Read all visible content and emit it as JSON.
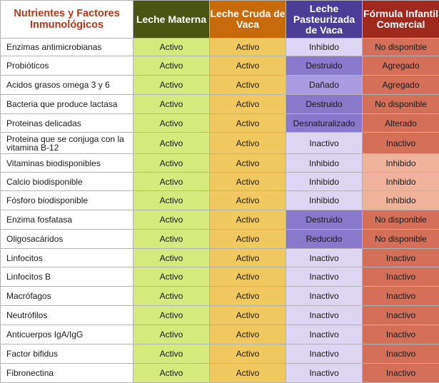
{
  "headers": [
    "Nutrientes y Factores Inmunológicos",
    "Leche Materna",
    "Leche Cruda de Vaca",
    "Leche Pasteurizada de Vaca",
    "Fórmula Infantil Comercial"
  ],
  "status_colors": {
    "Inhibido": "#dcd6f2",
    "Inactivo": "#dcd6f2",
    "Destruido": "#8979cd",
    "Dañado": "#a89be0",
    "Desnaturalizado": "#8979cd",
    "Reducido": "#8979cd",
    "No disponible": "#d4705a",
    "Agregado": "#d4705a",
    "Alterado": "#d4705a",
    "Inactivo_formula": "#d4705a",
    "Inhibido_formula": "#eeb39a"
  },
  "rows": [
    {
      "name": "Enzimas antimicrobianas",
      "c1": "Activo",
      "c2": "Activo",
      "c3": "Inhibido",
      "c4": "No disponible",
      "h": 25
    },
    {
      "name": "Probióticos",
      "c1": "Activo",
      "c2": "Activo",
      "c3": "Destruido",
      "c4": "Agregado",
      "h": 27
    },
    {
      "name": "Acidos grasos omega 3 y 6",
      "c1": "Activo",
      "c2": "Activo",
      "c3": "Dañado",
      "c4": "Agregado",
      "h": 27
    },
    {
      "name": "Bacteria que produce lactasa",
      "c1": "Activo",
      "c2": "Activo",
      "c3": "Destruido",
      "c4": "No disponible",
      "h": 27
    },
    {
      "name": "Proteinas delicadas",
      "c1": "Activo",
      "c2": "Activo",
      "c3": "Desnaturalizado",
      "c4": "Alterado",
      "h": 26
    },
    {
      "name": "Proteina que se conjuga con la vitamina B-12",
      "c1": "Activo",
      "c2": "Activo",
      "c3": "Inactivo",
      "c4": "Inactivo",
      "h": 30
    },
    {
      "name": "Vitaminas biodisponibles",
      "c1": "Activo",
      "c2": "Activo",
      "c3": "Inhibido",
      "c4": "Inhibido",
      "h": 26
    },
    {
      "name": "Calcio biodisponible",
      "c1": "Activo",
      "c2": "Activo",
      "c3": "Inhibido",
      "c4": "Inhibido",
      "h": 26
    },
    {
      "name": "Fósforo biodisponible",
      "c1": "Activo",
      "c2": "Activo",
      "c3": "Inhibido",
      "c4": "Inhibido",
      "h": 27
    },
    {
      "name": "Enzima fosfatasa",
      "c1": "Activo",
      "c2": "Activo",
      "c3": "Destruido",
      "c4": "No disponible",
      "h": 27
    },
    {
      "name": "Oligosacáridos",
      "c1": "Activo",
      "c2": "Activo",
      "c3": "Reducido",
      "c4": "No disponible",
      "h": 27
    },
    {
      "name": "Linfocitos",
      "c1": "Activo",
      "c2": "Activo",
      "c3": "Inactivo",
      "c4": "Inactivo",
      "h": 26
    },
    {
      "name": "Linfocitos B",
      "c1": "Activo",
      "c2": "Activo",
      "c3": "Inactivo",
      "c4": "Inactivo",
      "h": 27
    },
    {
      "name": "Macrófagos",
      "c1": "Activo",
      "c2": "Activo",
      "c3": "Inactivo",
      "c4": "Inactivo",
      "h": 27
    },
    {
      "name": "Neutrófilos",
      "c1": "Activo",
      "c2": "Activo",
      "c3": "Inactivo",
      "c4": "Inactivo",
      "h": 27
    },
    {
      "name": "Anticuerpos IgA/IgG",
      "c1": "Activo",
      "c2": "Activo",
      "c3": "Inactivo",
      "c4": "Inactivo",
      "h": 27
    },
    {
      "name": "Factor bifidus",
      "c1": "Activo",
      "c2": "Activo",
      "c3": "Inactivo",
      "c4": "Inactivo",
      "h": 27
    },
    {
      "name": "Fibronectina",
      "c1": "Activo",
      "c2": "Activo",
      "c3": "Inactivo",
      "c4": "Inactivo",
      "h": 27
    }
  ]
}
